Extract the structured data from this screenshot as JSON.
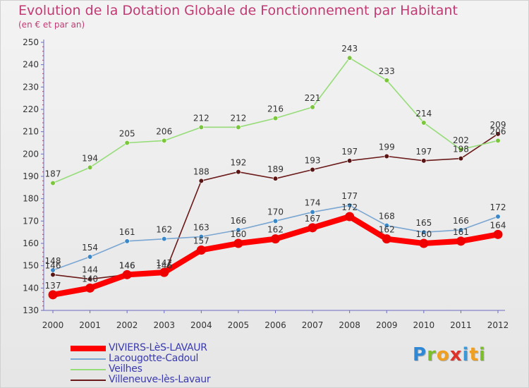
{
  "header": {
    "title": "Evolution de la Dotation Globale de Fonctionnement par Habitant",
    "subtitle": "(en € et par an)"
  },
  "logo": {
    "letters": [
      "P",
      "r",
      "o",
      "x",
      "i",
      "t",
      "i"
    ],
    "colors": [
      "#2f88d6",
      "#7cbf2b",
      "#f0a020",
      "#e0302a",
      "#3a9ad9",
      "#f0a020",
      "#7cbf2b"
    ]
  },
  "chart_data": {
    "type": "line",
    "title": "Evolution de la Dotation Globale de Fonctionnement par Habitant",
    "subtitle": "(en € et par an)",
    "x": [
      2000,
      2001,
      2002,
      2003,
      2004,
      2005,
      2006,
      2007,
      2008,
      2009,
      2010,
      2011,
      2012
    ],
    "ylim": [
      130,
      250
    ],
    "yticks": [
      130,
      140,
      150,
      160,
      170,
      180,
      190,
      200,
      210,
      220,
      230,
      240,
      250
    ],
    "grid": false,
    "legend": "bottom-left",
    "series": [
      {
        "name": "Villeneuve-lès-Lavaur",
        "color": "#6b1a1a",
        "marker": "#5a1414",
        "values": [
          146,
          144,
          146,
          146,
          188,
          192,
          189,
          193,
          197,
          199,
          197,
          198,
          209
        ],
        "labels": [
          "146",
          "144",
          "146",
          "146",
          "188",
          "192",
          "189",
          "193",
          "197",
          "199",
          "197",
          "198",
          "209"
        ]
      },
      {
        "name": "Veilhes",
        "color": "#96dc78",
        "marker": "#7cc63e",
        "values": [
          187,
          194,
          205,
          206,
          212,
          212,
          216,
          221,
          243,
          233,
          214,
          202,
          206
        ],
        "labels": [
          "187",
          "194",
          "205",
          "206",
          "212",
          "212",
          "216",
          "221",
          "243",
          "233",
          "214",
          "202",
          "206"
        ]
      },
      {
        "name": "Lacougotte-Cadoul",
        "color": "#7aa6d2",
        "marker": "#3a88c8",
        "values": [
          148,
          154,
          161,
          162,
          163,
          166,
          170,
          174,
          177,
          168,
          165,
          166,
          172
        ],
        "labels": [
          "148",
          "154",
          "161",
          "162",
          "163",
          "166",
          "170",
          "174",
          "177",
          "168",
          "165",
          "166",
          "172"
        ]
      },
      {
        "name": "VIVIERS-LèS-LAVAUR",
        "color": "#ff0000",
        "marker": "#ee0000",
        "values": [
          137,
          140,
          146,
          147,
          157,
          160,
          162,
          167,
          172,
          162,
          160,
          161,
          164
        ],
        "labels": [
          "137",
          "140",
          "146",
          "147",
          "157",
          "160",
          "162",
          "167",
          "172",
          "162",
          "160",
          "161",
          "164"
        ]
      }
    ],
    "legend_order": [
      "VIVIERS-LèS-LAVAUR",
      "Lacougotte-Cadoul",
      "Veilhes",
      "Villeneuve-lès-Lavaur"
    ]
  }
}
